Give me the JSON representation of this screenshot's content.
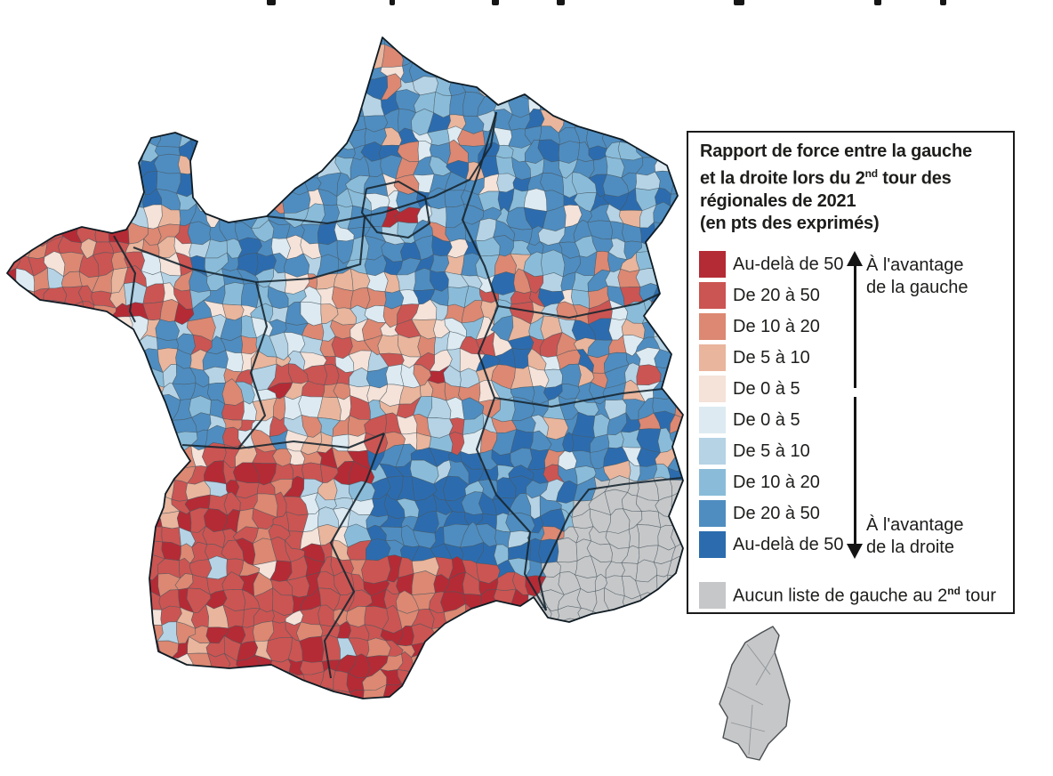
{
  "page": {
    "background": "#ffffff"
  },
  "legend": {
    "border_color": "#1a1a1a",
    "title": {
      "l1": "Rapport de force entre la gauche",
      "l2_pre": "et la droite lors du 2",
      "l2_sup": "nd",
      "l2_post": " tour des",
      "l3": "régionales de 2021",
      "l4": "(en pts des exprimés)"
    },
    "items": [
      {
        "label": "Au-delà de 50",
        "color": "#b42b35",
        "side": "gauche"
      },
      {
        "label": "De 20 à 50",
        "color": "#cb5552",
        "side": "gauche"
      },
      {
        "label": "De 10 à 20",
        "color": "#dc8872",
        "side": "gauche"
      },
      {
        "label": "De 5 à 10",
        "color": "#e9b59c",
        "side": "gauche"
      },
      {
        "label": "De 0 à 5",
        "color": "#f5e2d8",
        "side": "gauche"
      },
      {
        "label": "De 0 à 5",
        "color": "#ddeaf1",
        "side": "droite"
      },
      {
        "label": "De 5 à 10",
        "color": "#b5d3e5",
        "side": "droite"
      },
      {
        "label": "De 10 à 20",
        "color": "#8abcd9",
        "side": "droite"
      },
      {
        "label": "De 20 à 50",
        "color": "#4f8dc0",
        "side": "droite"
      },
      {
        "label": "Au-delà de 50",
        "color": "#2c6cae",
        "side": "droite"
      }
    ],
    "gray": {
      "pre": "Aucun liste de gauche au 2",
      "sup": "nd",
      "post": " tour",
      "color": "#c6c7c8"
    },
    "up": {
      "l1": "À l'avantage",
      "l2": "de la gauche"
    },
    "down": {
      "l1": "À l'avantage",
      "l2": "de la droite"
    }
  },
  "chart_data": {
    "type": "choropleth",
    "title": "Rapport de force entre la gauche et la droite lors du 2nd tour des régionales de 2021 (en pts des exprimés)",
    "geography": "France métropolitaine par cantons, avec la Corse",
    "legend_classes": [
      {
        "range": "Au-delà de 50",
        "advantage": "gauche",
        "color": "#b42b35"
      },
      {
        "range": "De 20 à 50",
        "advantage": "gauche",
        "color": "#cb5552"
      },
      {
        "range": "De 10 à 20",
        "advantage": "gauche",
        "color": "#dc8872"
      },
      {
        "range": "De 5 à 10",
        "advantage": "gauche",
        "color": "#e9b59c"
      },
      {
        "range": "De 0 à 5",
        "advantage": "gauche",
        "color": "#f5e2d8"
      },
      {
        "range": "De 0 à 5",
        "advantage": "droite",
        "color": "#ddeaf1"
      },
      {
        "range": "De 5 à 10",
        "advantage": "droite",
        "color": "#b5d3e5"
      },
      {
        "range": "De 10 à 20",
        "advantage": "droite",
        "color": "#8abcd9"
      },
      {
        "range": "De 20 à 50",
        "advantage": "droite",
        "color": "#4f8dc0"
      },
      {
        "range": "Au-delà de 50",
        "advantage": "droite",
        "color": "#2c6cae"
      },
      {
        "range": "Aucun liste de gauche au 2nd tour",
        "advantage": null,
        "color": "#c6c7c8"
      }
    ],
    "annotations": [
      "À l'avantage de la gauche",
      "À l'avantage de la droite"
    ],
    "spatial_pattern": {
      "nord_normandie_grand_est": "avantage droite (bleu)",
      "bretagne": "avantage gauche (rouge)",
      "pays_de_la_loire": "avantage droite (bleu)",
      "centre_bourgogne": "mosaïque mixte rouge/bleu",
      "sud_ouest_et_occitanie": "fort avantage gauche (rouge foncé)",
      "auvergne_rhone_alpes": "fort avantage droite (bleu foncé)",
      "provence_alpes_cote_d_azur_et_corse": "aucune liste de gauche au 2nd tour (gris)"
    }
  }
}
